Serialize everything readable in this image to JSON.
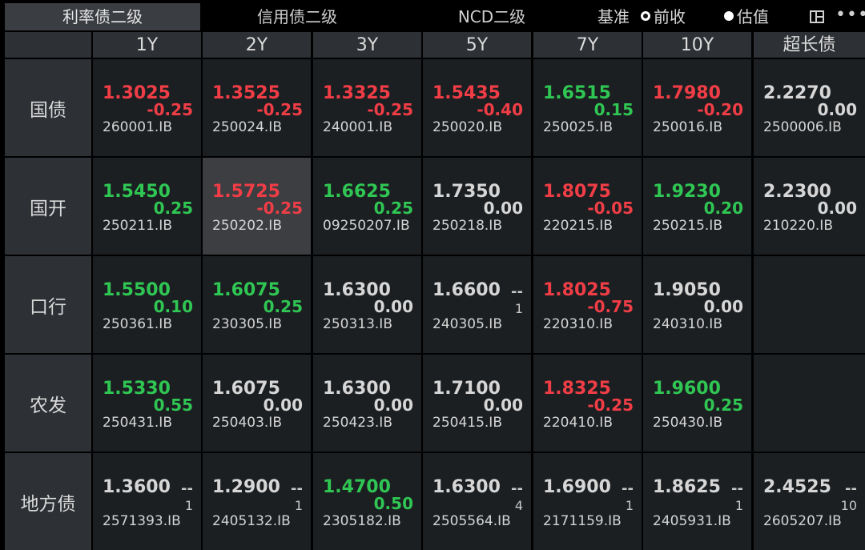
{
  "tabs": [
    {
      "label": "利率债二级",
      "active": true
    },
    {
      "label": "信用债二级",
      "active": false
    },
    {
      "label": "NCD二级",
      "active": false
    }
  ],
  "basis": {
    "label": "基准",
    "options": [
      {
        "label": "前收",
        "checked": true
      },
      {
        "label": "估值",
        "checked": false
      }
    ]
  },
  "icons": {
    "layout": "layout-icon",
    "more": "more-icon",
    "more_glyph": "•••"
  },
  "colors": {
    "up": "#f03d46",
    "down": "#2fc653",
    "flat": "#d6d6d6"
  },
  "columns": [
    "1Y",
    "2Y",
    "3Y",
    "5Y",
    "7Y",
    "10Y",
    "超长债"
  ],
  "rows": [
    {
      "name": "国债",
      "cells": [
        {
          "yield": "1.3025",
          "change": "-0.25",
          "code": "260001.IB",
          "color": "red"
        },
        {
          "yield": "1.3525",
          "change": "-0.25",
          "code": "250024.IB",
          "color": "red"
        },
        {
          "yield": "1.3325",
          "change": "-0.25",
          "code": "240001.IB",
          "color": "red"
        },
        {
          "yield": "1.5435",
          "change": "-0.40",
          "code": "250020.IB",
          "color": "red"
        },
        {
          "yield": "1.6515",
          "change": "0.15",
          "code": "250025.IB",
          "color": "green"
        },
        {
          "yield": "1.7980",
          "change": "-0.20",
          "code": "250016.IB",
          "color": "red"
        },
        {
          "yield": "2.2270",
          "change": "0.00",
          "code": "2500006.IB",
          "color": "white"
        }
      ]
    },
    {
      "name": "国开",
      "cells": [
        {
          "yield": "1.5450",
          "change": "0.25",
          "code": "250211.IB",
          "color": "green"
        },
        {
          "yield": "1.5725",
          "change": "-0.25",
          "code": "250202.IB",
          "color": "red",
          "highlight": true
        },
        {
          "yield": "1.6625",
          "change": "0.25",
          "code": "09250207.IB",
          "color": "green"
        },
        {
          "yield": "1.7350",
          "change": "0.00",
          "code": "250218.IB",
          "color": "white"
        },
        {
          "yield": "1.8075",
          "change": "-0.05",
          "code": "220215.IB",
          "color": "red"
        },
        {
          "yield": "1.9230",
          "change": "0.20",
          "code": "250215.IB",
          "color": "green"
        },
        {
          "yield": "2.2300",
          "change": "0.00",
          "code": "210220.IB",
          "color": "white"
        }
      ]
    },
    {
      "name": "口行",
      "cells": [
        {
          "yield": "1.5500",
          "change": "0.10",
          "code": "250361.IB",
          "color": "green"
        },
        {
          "yield": "1.6075",
          "change": "0.25",
          "code": "230305.IB",
          "color": "green"
        },
        {
          "yield": "1.6300",
          "change": "0.00",
          "code": "250313.IB",
          "color": "white"
        },
        {
          "yield": "1.6600",
          "dash": "--",
          "count": "1",
          "code": "240305.IB",
          "color": "white"
        },
        {
          "yield": "1.8025",
          "change": "-0.75",
          "code": "220310.IB",
          "color": "red"
        },
        {
          "yield": "1.9050",
          "change": "0.00",
          "code": "240310.IB",
          "color": "white"
        },
        null
      ]
    },
    {
      "name": "农发",
      "cells": [
        {
          "yield": "1.5330",
          "change": "0.55",
          "code": "250431.IB",
          "color": "green"
        },
        {
          "yield": "1.6075",
          "change": "0.00",
          "code": "250403.IB",
          "color": "white"
        },
        {
          "yield": "1.6300",
          "change": "0.00",
          "code": "250423.IB",
          "color": "white"
        },
        {
          "yield": "1.7100",
          "change": "0.00",
          "code": "250415.IB",
          "color": "white"
        },
        {
          "yield": "1.8325",
          "change": "-0.25",
          "code": "220410.IB",
          "color": "red"
        },
        {
          "yield": "1.9600",
          "change": "0.25",
          "code": "250430.IB",
          "color": "green"
        },
        null
      ]
    },
    {
      "name": "地方债",
      "cells": [
        {
          "yield": "1.3600",
          "dash": "--",
          "count": "1",
          "code": "2571393.IB",
          "color": "white"
        },
        {
          "yield": "1.2900",
          "dash": "--",
          "count": "1",
          "code": "2405132.IB",
          "color": "white"
        },
        {
          "yield": "1.4700",
          "change": "0.50",
          "code": "2305182.IB",
          "color": "green"
        },
        {
          "yield": "1.6300",
          "dash": "--",
          "count": "4",
          "code": "2505564.IB",
          "color": "white"
        },
        {
          "yield": "1.6900",
          "dash": "--",
          "count": "1",
          "code": "2171159.IB",
          "color": "white"
        },
        {
          "yield": "1.8625",
          "dash": "--",
          "count": "1",
          "code": "2405931.IB",
          "color": "white"
        },
        {
          "yield": "2.4525",
          "dash": "--",
          "count": "10",
          "code": "2605207.IB",
          "color": "white"
        }
      ]
    }
  ]
}
